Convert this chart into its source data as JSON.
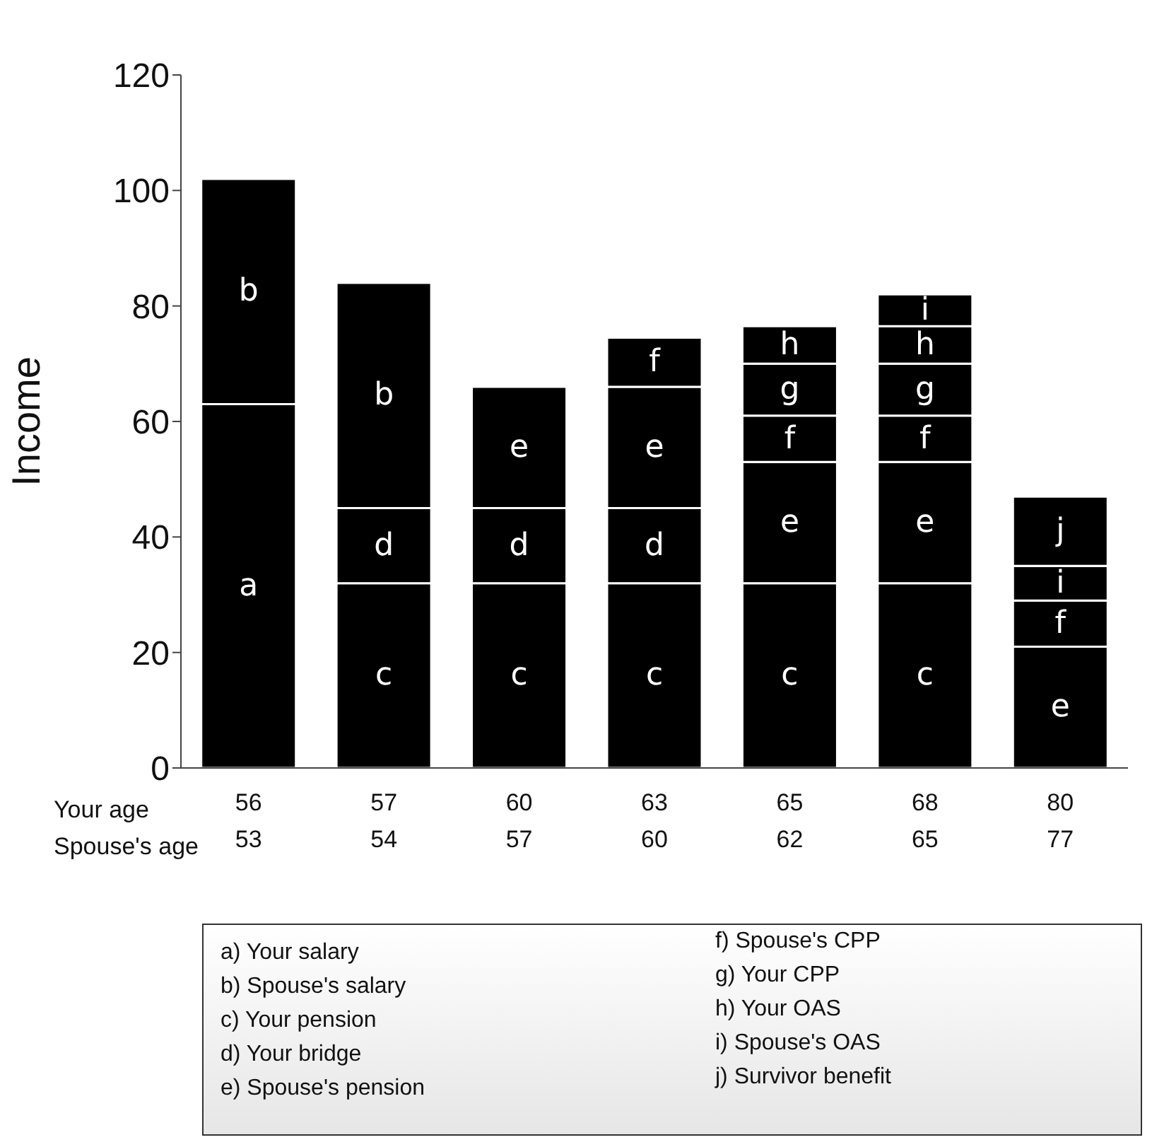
{
  "chart_data": {
    "type": "bar",
    "stacked": true,
    "ylabel": "Income",
    "xlabel": "Your age\nSpouse's age",
    "categories": [
      "56\n53",
      "57\n54",
      "60\n57",
      "63\n60",
      "65\n62",
      "68\n65",
      "80\n77"
    ],
    "ylim": [
      0,
      120
    ],
    "yticks": [
      0,
      20,
      40,
      60,
      80,
      100,
      120
    ],
    "legend": "bottom",
    "annotations": [
      "a) Your salary",
      "b) Spouse's salary",
      "c) Your pension",
      "d) Your bridge",
      "e) Spouse's pension",
      "f) Spouse's CPP",
      "g) Your CPP",
      "h) Your OAS",
      "i) Spouse's OAS",
      "j) Survivor benefit"
    ],
    "series": [
      {
        "name": "a",
        "color": "#000000",
        "values": [
          63,
          null,
          null,
          null,
          null,
          null,
          null
        ]
      },
      {
        "name": "c",
        "color": "#000000",
        "values": [
          null,
          32,
          32,
          32,
          32,
          32,
          null
        ]
      },
      {
        "name": "d",
        "color": "#000000",
        "values": [
          null,
          13,
          13,
          13,
          null,
          null,
          null
        ]
      },
      {
        "name": "e",
        "color": "#000000",
        "values": [
          null,
          null,
          21,
          21,
          21,
          21,
          21
        ]
      },
      {
        "name": "b",
        "color": "#000000",
        "values": [
          39,
          39,
          null,
          null,
          null,
          null,
          null
        ]
      },
      {
        "name": "f",
        "color": "#000000",
        "values": [
          null,
          null,
          null,
          8.5,
          8,
          8,
          8
        ]
      },
      {
        "name": "g",
        "color": "#000000",
        "values": [
          null,
          null,
          null,
          null,
          9,
          9,
          null
        ]
      },
      {
        "name": "h",
        "color": "#000000",
        "values": [
          null,
          null,
          null,
          null,
          6.5,
          6.5,
          null
        ]
      },
      {
        "name": "i",
        "color": "#000000",
        "values": [
          null,
          null,
          null,
          null,
          null,
          5.5,
          6
        ]
      },
      {
        "name": "j",
        "color": "#000000",
        "values": [
          null,
          null,
          null,
          null,
          null,
          null,
          12
        ]
      }
    ]
  }
}
